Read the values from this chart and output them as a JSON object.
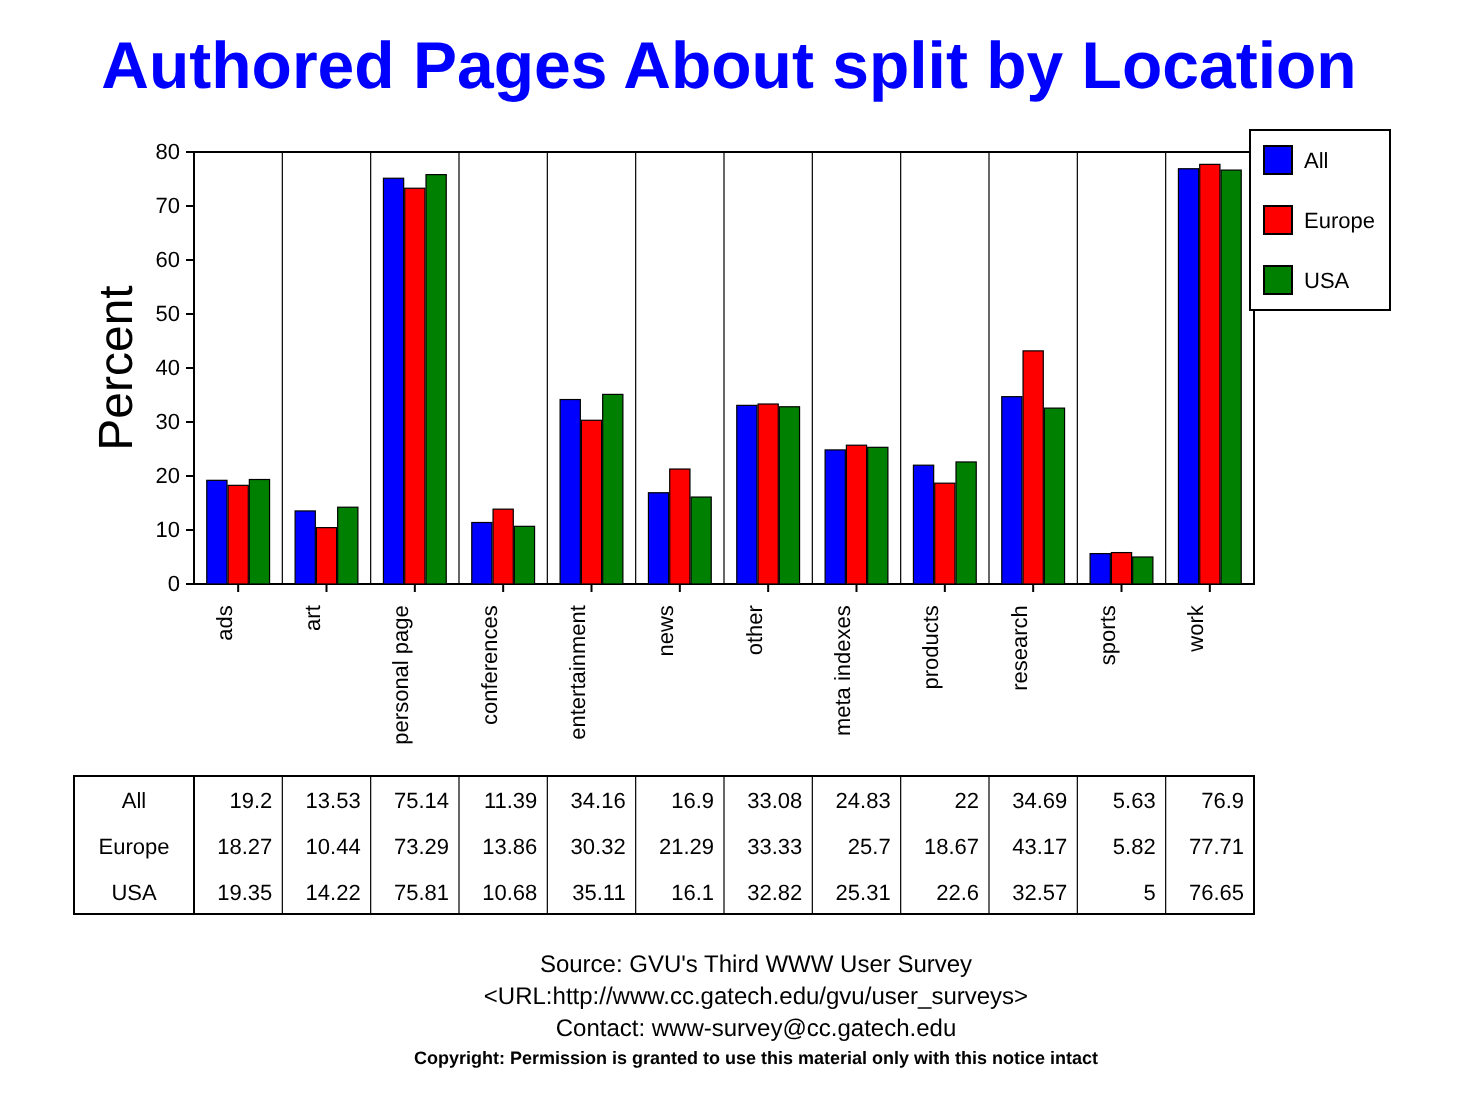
{
  "chart_data": {
    "type": "bar",
    "title": "Authored Pages About split by Location",
    "ylabel": "Percent",
    "categories": [
      "ads",
      "art",
      "personal page",
      "conferences",
      "entertainment",
      "news",
      "other",
      "meta indexes",
      "products",
      "research",
      "sports",
      "work"
    ],
    "series": [
      {
        "name": "All",
        "color": "#0000ff",
        "values": [
          19.2,
          13.53,
          75.14,
          11.39,
          34.16,
          16.9,
          33.08,
          24.83,
          22,
          34.69,
          5.63,
          76.9
        ]
      },
      {
        "name": "Europe",
        "color": "#ff0000",
        "values": [
          18.27,
          10.44,
          73.29,
          13.86,
          30.32,
          21.29,
          33.33,
          25.7,
          18.67,
          43.17,
          5.82,
          77.71
        ]
      },
      {
        "name": "USA",
        "color": "#008000",
        "values": [
          19.35,
          14.22,
          75.81,
          10.68,
          35.11,
          16.1,
          32.82,
          25.31,
          22.6,
          32.57,
          5,
          76.65
        ]
      }
    ],
    "ylim": [
      0,
      80
    ],
    "yticks": [
      0,
      10,
      20,
      30,
      40,
      50,
      60,
      70,
      80
    ],
    "grid": "x",
    "legend": "top right",
    "data_labels": true,
    "annotations": [
      "Source: GVU's Third WWW User Survey",
      "<URL:http://www.cc.gatech.edu/gvu/user_surveys>",
      "Contact: www-survey@cc.gatech.edu",
      "Copyright: Permission is granted to use this material only with this notice intact"
    ]
  }
}
